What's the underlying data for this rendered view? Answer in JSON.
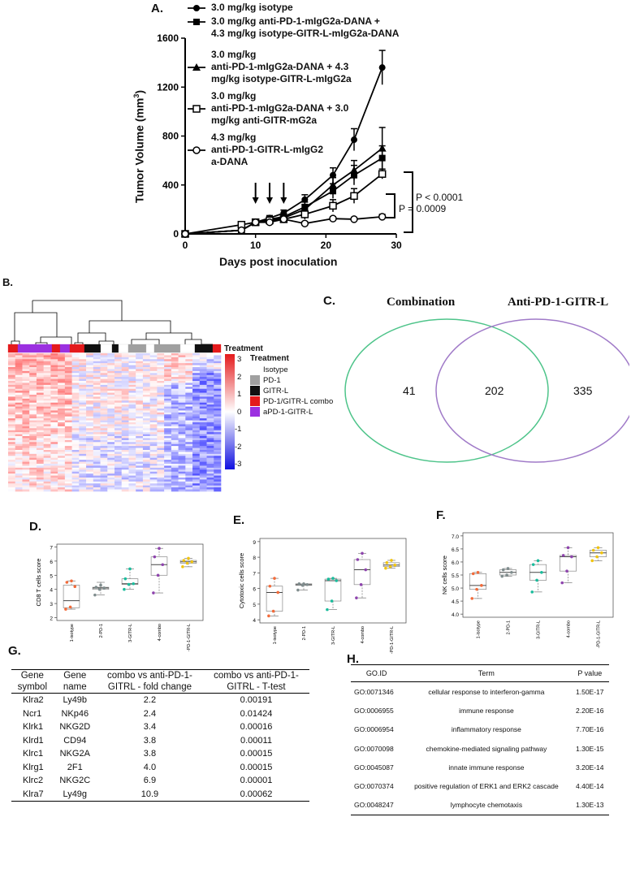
{
  "panels": {
    "A": "A.",
    "B": "B.",
    "C": "C.",
    "D": "D.",
    "E": "E.",
    "F": "F.",
    "G": "G.",
    "H": "H."
  },
  "panelA": {
    "ylabel": "Tumor Volume (mm",
    "ylabel_sup": "3",
    "ylabel_end": ")",
    "xlabel": "Days post inoculation",
    "yticks": [
      "0",
      "400",
      "800",
      "1200",
      "1600"
    ],
    "xticks": [
      "0",
      "10",
      "20",
      "30"
    ],
    "legend": [
      [
        "3.0 mg/kg isotype"
      ],
      [
        "3.0 mg/kg anti-PD-1-mIgG2a-DANA +",
        "4.3 mg/kg isotype-GITR-L-mIgG2a-DANA"
      ],
      [
        "3.0 mg/kg",
        "anti-PD-1-mIgG2a-DANA + 4.3",
        "mg/kg isotype-GITR-L-mIgG2a"
      ],
      [
        "3.0 mg/kg",
        "anti-PD-1-mIgG2a-DANA + 3.0",
        "mg/kg anti-GITR-mG2a"
      ],
      [
        "4.3 mg/kg",
        "anti-PD-1-GITR-L-mIgG2",
        "a-DANA"
      ]
    ],
    "p1": "P < 0.0001",
    "p2": "P = 0.0009"
  },
  "chart_data": [
    {
      "type": "line",
      "panel": "A",
      "title": "",
      "xlabel": "Days post inoculation",
      "ylabel": "Tumor Volume (mm3)",
      "xlim": [
        0,
        30
      ],
      "ylim": [
        0,
        1600
      ],
      "x": [
        0,
        8,
        10,
        12,
        14,
        17,
        21,
        24,
        28
      ],
      "series": [
        {
          "name": "3.0 mg/kg isotype",
          "marker": "filled-circle",
          "values": [
            0,
            30,
            95,
            130,
            170,
            280,
            480,
            770,
            1360
          ],
          "err": [
            0,
            5,
            15,
            20,
            25,
            40,
            60,
            90,
            140
          ]
        },
        {
          "name": "anti-PD-1 + isotype-GITR-L-DANA",
          "marker": "filled-square",
          "values": [
            0,
            30,
            95,
            120,
            140,
            220,
            350,
            480,
            620
          ],
          "err": [
            0,
            5,
            15,
            20,
            25,
            40,
            60,
            80,
            100
          ]
        },
        {
          "name": "anti-PD-1 + isotype-GITR-L",
          "marker": "filled-triangle",
          "values": [
            0,
            30,
            95,
            115,
            130,
            200,
            400,
            520,
            700
          ],
          "err": [
            0,
            5,
            15,
            20,
            25,
            40,
            60,
            80,
            170
          ]
        },
        {
          "name": "anti-PD-1 + anti-GITR",
          "marker": "open-square",
          "values": [
            0,
            75,
            95,
            110,
            120,
            160,
            230,
            310,
            490
          ],
          "err": [
            0,
            5,
            15,
            20,
            25,
            40,
            50,
            60,
            40
          ]
        },
        {
          "name": "anti-PD-1-GITR-L-DANA",
          "marker": "open-circle",
          "values": [
            0,
            30,
            95,
            95,
            120,
            85,
            125,
            120,
            140
          ],
          "err": [
            0,
            5,
            15,
            10,
            15,
            15,
            15,
            15,
            20
          ]
        }
      ],
      "annotations": [
        "P < 0.0001",
        "P = 0.0009"
      ],
      "dosing_days": [
        10,
        12,
        14
      ]
    },
    {
      "type": "box",
      "panel": "D",
      "ylabel": "CD8 T cells score",
      "ylim": [
        2,
        7
      ],
      "yticks": [
        2,
        3,
        4,
        5,
        6,
        7
      ],
      "categories": [
        "1-isotype",
        "2-PD-1",
        "3-GITR-L",
        "4-combo",
        "5-PD-1-GITR-L"
      ],
      "boxes": [
        {
          "q1": 2.7,
          "median": 3.2,
          "q3": 4.3,
          "min": 2.6,
          "max": 4.6,
          "points": [
            2.6,
            2.75,
            4.2,
            4.5,
            4.6
          ]
        },
        {
          "q1": 4.0,
          "median": 4.1,
          "q3": 4.15,
          "min": 3.6,
          "max": 4.5,
          "points": [
            3.6,
            4.0,
            4.1,
            4.15,
            4.3
          ]
        },
        {
          "q1": 4.35,
          "median": 4.4,
          "q3": 4.75,
          "min": 4.0,
          "max": 5.45,
          "points": [
            4.0,
            4.35,
            4.4,
            4.75,
            5.45
          ]
        },
        {
          "q1": 5.0,
          "median": 5.75,
          "q3": 6.3,
          "min": 3.75,
          "max": 6.9,
          "points": [
            3.75,
            5.0,
            5.75,
            6.3,
            6.9
          ]
        },
        {
          "q1": 5.85,
          "median": 5.95,
          "q3": 6.05,
          "min": 5.6,
          "max": 6.2,
          "points": [
            5.6,
            5.85,
            5.95,
            6.05,
            6.2
          ]
        }
      ]
    },
    {
      "type": "box",
      "panel": "E",
      "ylabel": "Cytotoxic cells score",
      "ylim": [
        4,
        9
      ],
      "yticks": [
        4,
        5,
        6,
        7,
        8,
        9
      ],
      "categories": [
        "1-isotype",
        "2-PD-1",
        "3-GITR-L",
        "4-combo",
        "5-PD-1-GITR-L"
      ],
      "boxes": [
        {
          "q1": 4.55,
          "median": 5.75,
          "q3": 6.15,
          "min": 4.25,
          "max": 6.65,
          "points": [
            4.25,
            4.55,
            5.75,
            6.15,
            6.65
          ]
        },
        {
          "q1": 6.2,
          "median": 6.25,
          "q3": 6.3,
          "min": 5.9,
          "max": 6.3,
          "points": [
            5.9,
            6.2,
            6.25,
            6.3,
            6.3
          ]
        },
        {
          "q1": 5.2,
          "median": 6.5,
          "q3": 6.6,
          "min": 4.65,
          "max": 6.65,
          "points": [
            4.65,
            5.2,
            6.5,
            6.6,
            6.65
          ]
        },
        {
          "q1": 6.25,
          "median": 7.2,
          "q3": 7.85,
          "min": 5.4,
          "max": 8.25,
          "points": [
            5.4,
            6.25,
            7.2,
            7.85,
            8.25
          ]
        },
        {
          "q1": 7.4,
          "median": 7.5,
          "q3": 7.65,
          "min": 7.3,
          "max": 7.8,
          "points": [
            7.3,
            7.4,
            7.5,
            7.65,
            7.8
          ]
        }
      ]
    },
    {
      "type": "box",
      "panel": "F",
      "ylabel": "NK cells score",
      "ylim": [
        4.0,
        7.0
      ],
      "yticks": [
        4.0,
        4.5,
        5.0,
        5.5,
        6.0,
        6.5,
        7.0
      ],
      "categories": [
        "1-isotype",
        "2-PD-1",
        "3-GITR-L",
        "4-combo",
        "5-PD-1-GITR-L"
      ],
      "boxes": [
        {
          "q1": 4.95,
          "median": 5.1,
          "q3": 5.55,
          "min": 4.6,
          "max": 5.6,
          "points": [
            4.6,
            4.95,
            5.1,
            5.55,
            5.6
          ]
        },
        {
          "q1": 5.5,
          "median": 5.6,
          "q3": 5.7,
          "min": 5.45,
          "max": 5.75,
          "points": [
            5.45,
            5.5,
            5.6,
            5.7,
            5.75
          ]
        },
        {
          "q1": 5.3,
          "median": 5.6,
          "q3": 5.9,
          "min": 4.85,
          "max": 6.05,
          "points": [
            4.85,
            5.3,
            5.6,
            5.9,
            6.05
          ]
        },
        {
          "q1": 5.65,
          "median": 6.2,
          "q3": 6.25,
          "min": 5.2,
          "max": 6.55,
          "points": [
            5.2,
            5.65,
            6.2,
            6.25,
            6.55
          ]
        },
        {
          "q1": 6.2,
          "median": 6.35,
          "q3": 6.45,
          "min": 6.05,
          "max": 6.55,
          "points": [
            6.05,
            6.2,
            6.35,
            6.45,
            6.55
          ]
        }
      ]
    },
    {
      "type": "venn",
      "panel": "C",
      "sets": [
        "Combination",
        "Anti-PD-1-GITR-L"
      ],
      "values": {
        "only_a": 41,
        "both": 202,
        "only_b": 335
      }
    }
  ],
  "panelB": {
    "treatment_label": "Treatment",
    "legend_title": "Treatment",
    "legend": [
      {
        "label": "Isotype",
        "color": "#ffffff"
      },
      {
        "label": "PD-1",
        "color": "#a0a0a0"
      },
      {
        "label": "GITR-L",
        "color": "#111111"
      },
      {
        "label": "PD-1/GITR-L combo",
        "color": "#e41a1c"
      },
      {
        "label": "aPD-1-GITR-L",
        "color": "#9b30e0"
      }
    ],
    "scale": [
      "3",
      "2",
      "1",
      "0",
      "-1",
      "-2",
      "-3"
    ]
  },
  "panelC": {
    "setA": "Combination",
    "setB": "Anti-PD-1-GITR-L",
    "onlyA": "41",
    "both": "202",
    "onlyB": "335"
  },
  "boxColors": [
    "#f26b3a",
    "#7f8c8d",
    "#1abc9c",
    "#8e44ad",
    "#f1c40f"
  ],
  "panelG": {
    "headers": [
      [
        "Gene",
        "symbol"
      ],
      [
        "Gene",
        "name"
      ],
      [
        "combo vs anti-PD-1-",
        "GITRL - fold change"
      ],
      [
        "combo vs anti-PD-1-",
        "GITRL - T-test"
      ]
    ],
    "rows": [
      [
        "Klra2",
        "Ly49b",
        "2.2",
        "0.00191"
      ],
      [
        "Ncr1",
        "NKp46",
        "2.4",
        "0.01424"
      ],
      [
        "Klrk1",
        "NKG2D",
        "3.4",
        "0.00016"
      ],
      [
        "Klrd1",
        "CD94",
        "3.8",
        "0.00011"
      ],
      [
        "Klrc1",
        "NKG2A",
        "3.8",
        "0.00015"
      ],
      [
        "Klrg1",
        "2F1",
        "4.0",
        "0.00015"
      ],
      [
        "Klrc2",
        "NKG2C",
        "6.9",
        "0.00001"
      ],
      [
        "Klra7",
        "Ly49g",
        "10.9",
        "0.00062"
      ]
    ]
  },
  "panelH": {
    "headers": [
      "GO.ID",
      "Term",
      "P value"
    ],
    "rows": [
      [
        "GO:0071346",
        "cellular response to interferon-gamma",
        "1.50E-17"
      ],
      [
        "GO:0006955",
        "immune response",
        "2.20E-16"
      ],
      [
        "GO:0006954",
        "inflammatory response",
        "7.70E-16"
      ],
      [
        "GO:0070098",
        "chemokine-mediated signaling pathway",
        "1.30E-15"
      ],
      [
        "GO:0045087",
        "innate immune response",
        "3.20E-14"
      ],
      [
        "GO:0070374",
        "positive regulation of ERK1 and ERK2 cascade",
        "4.40E-14"
      ],
      [
        "GO:0048247",
        "lymphocyte chemotaxis",
        "1.30E-13"
      ]
    ]
  }
}
